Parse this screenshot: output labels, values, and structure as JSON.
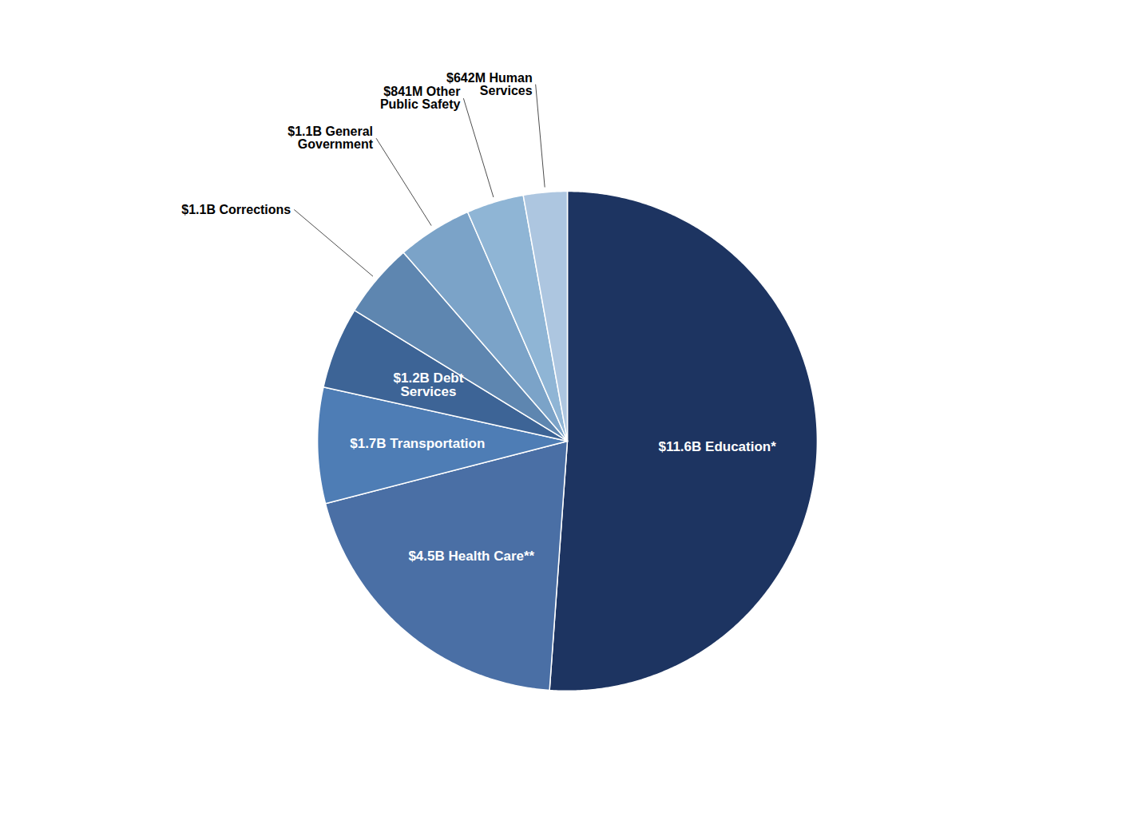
{
  "chart_data": {
    "type": "pie",
    "categories": [
      "$11.6B Education*",
      "$4.5B Health Care**",
      "$1.7B Transportation",
      "$1.2B Debt\nServices",
      "$1.1B Corrections",
      "$1.1B General\nGovernment",
      "$841M Other\nPublic Safety",
      "$642M Human\nServices"
    ],
    "values": [
      11.6,
      4.5,
      1.7,
      1.2,
      1.1,
      1.1,
      0.841,
      0.642
    ],
    "colors": [
      "#1d3461",
      "#4a6fa5",
      "#4e7db5",
      "#3d6496",
      "#5e86b0",
      "#7ba3c8",
      "#8fb5d5",
      "#adc6e0"
    ]
  }
}
